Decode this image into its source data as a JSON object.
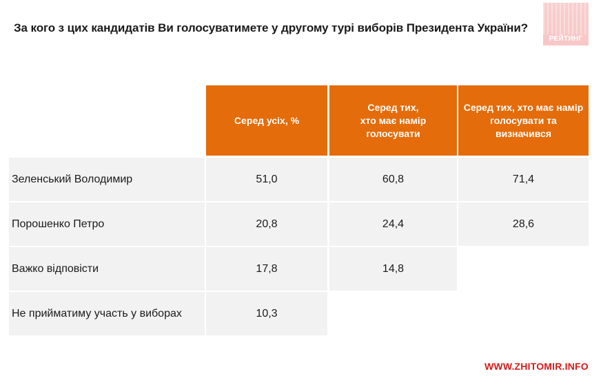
{
  "title": "За кого з цих кандидатів Ви голосуватимете у другому турі виборів Президента України?",
  "logo_text": "РЕЙТИНГ",
  "watermark": "WWW.ZHITOMIR.INFO",
  "colors": {
    "header": "#e46c0a",
    "cell": "#f2f2f2",
    "watermark": "#d81a1a"
  },
  "chart_data": {
    "type": "table",
    "columns": [
      "Серед усіх, %",
      "Серед тих, хто має намір голосувати",
      "Серед тих, хто має намір голосувати та визначився"
    ],
    "rows": [
      {
        "label": "Зеленський Володимир",
        "values": [
          "51,0",
          "60,8",
          "71,4"
        ]
      },
      {
        "label": "Порошенко Петро",
        "values": [
          "20,8",
          "24,4",
          "28,6"
        ]
      },
      {
        "label": "Важко відповісти",
        "values": [
          "17,8",
          "14,8",
          null
        ]
      },
      {
        "label": "Не прийматиму участь у виборах",
        "values": [
          "10,3",
          null,
          null
        ]
      }
    ]
  }
}
